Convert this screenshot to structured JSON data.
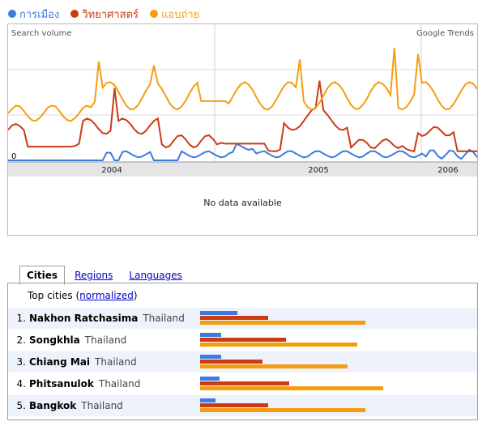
{
  "legend": [
    {
      "label": "การเมือง",
      "color": "#3d7be0"
    },
    {
      "label": "วิทยาศาสตร์",
      "color": "#cc3b14"
    },
    {
      "label": "แอบถ่าย",
      "color": "#f59d10"
    }
  ],
  "chart_data": {
    "type": "line",
    "title": "",
    "corner_left": "Search volume",
    "corner_right": "Google Trends",
    "y_zero_label": "0",
    "x_tick_labels": [
      "2004",
      "2005",
      "2006"
    ],
    "grid": true,
    "no_data_text": "No data available",
    "series": [
      {
        "name": "การเมือง",
        "values": [
          0,
          0,
          0,
          0,
          0,
          0,
          0,
          0,
          0,
          0,
          0,
          0,
          0,
          0,
          0,
          0,
          0,
          0,
          0,
          0,
          0,
          0,
          0,
          0,
          0,
          0,
          0,
          0,
          0,
          0,
          0,
          0,
          0,
          0,
          0,
          0,
          0,
          0,
          0,
          0,
          0,
          0,
          0,
          0,
          0,
          0,
          0,
          0,
          0,
          0,
          0,
          0,
          0,
          0,
          0,
          0,
          0,
          0,
          0,
          0,
          0,
          0,
          0,
          0,
          0,
          0,
          0,
          0,
          0,
          0,
          0,
          0,
          0,
          0,
          0,
          0,
          0,
          0,
          0,
          0,
          0,
          0,
          0,
          0,
          0,
          0,
          0,
          0,
          0,
          0,
          0,
          0,
          0,
          0,
          0,
          0,
          0,
          0,
          0,
          0,
          0,
          0,
          0,
          0,
          0,
          0,
          0,
          0,
          0,
          0,
          0,
          0,
          0,
          0,
          0,
          0,
          0,
          0,
          0,
          0,
          0,
          0,
          0,
          0,
          0,
          0,
          0,
          0,
          0,
          0,
          0,
          0,
          0,
          0,
          0,
          0,
          0,
          0,
          0,
          0,
          0,
          0,
          0,
          0,
          0,
          0,
          0,
          0,
          0,
          0,
          0,
          0,
          0,
          0,
          0,
          0,
          0,
          0,
          0,
          0,
          0,
          0,
          0,
          0,
          0,
          0,
          0,
          0,
          0,
          0,
          0,
          0,
          0,
          0,
          0,
          0,
          0,
          0
        ]
      },
      {
        "name": "วิทยาศาสตร์",
        "values": []
      },
      {
        "name": "แอบถ่าย",
        "values": []
      }
    ]
  },
  "tabs": {
    "cities": "Cities",
    "regions": "Regions",
    "languages": "Languages"
  },
  "top_cities": {
    "prefix": "Top cities (",
    "link": "normalized",
    "suffix": ")"
  },
  "cities": [
    {
      "rank": "1.",
      "name": "Nakhon Ratchasima",
      "country": "Thailand",
      "values": [
        19,
        35,
        85
      ]
    },
    {
      "rank": "2.",
      "name": "Songkhla",
      "country": "Thailand",
      "values": [
        11,
        44,
        81
      ]
    },
    {
      "rank": "3.",
      "name": "Chiang Mai",
      "country": "Thailand",
      "values": [
        11,
        32,
        76
      ]
    },
    {
      "rank": "4.",
      "name": "Phitsanulok",
      "country": "Thailand",
      "values": [
        10,
        46,
        94
      ]
    },
    {
      "rank": "5.",
      "name": "Bangkok",
      "country": "Thailand",
      "values": [
        8,
        35,
        85
      ]
    }
  ]
}
